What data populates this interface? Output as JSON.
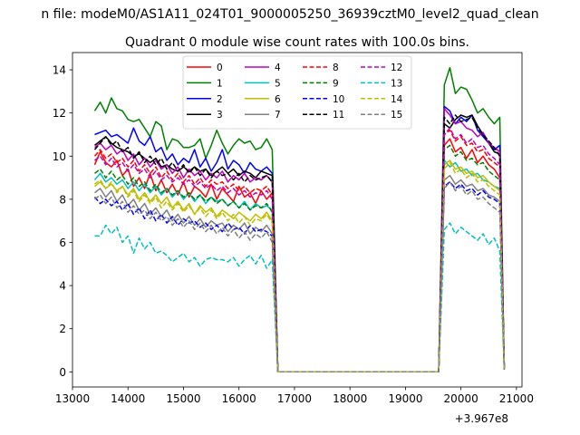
{
  "suptitle": "n file: modeM0/AS1A11_024T01_9000005250_36939cztM0_level2_quad_clean",
  "chart_data": {
    "type": "line",
    "title": "Quadrant 0 module wise count rates with 100.0s bins.",
    "xlabel": "",
    "ylabel": "",
    "x_offset_label": "+3.967e8",
    "xlim": [
      13000,
      21100
    ],
    "ylim": [
      -0.7,
      14.8
    ],
    "x_ticks": [
      13000,
      14000,
      15000,
      16000,
      17000,
      18000,
      19000,
      20000,
      21000
    ],
    "y_ticks": [
      0,
      2,
      4,
      6,
      8,
      10,
      12,
      14
    ],
    "grid": false,
    "legend_placement": "upper center",
    "legend_columns": 4,
    "x": [
      13400,
      13500,
      13600,
      13700,
      13800,
      13900,
      14000,
      14100,
      14200,
      14300,
      14400,
      14500,
      14600,
      14700,
      14800,
      14900,
      15000,
      15100,
      15200,
      15300,
      15400,
      15500,
      15600,
      15700,
      15800,
      15900,
      16000,
      16100,
      16200,
      16300,
      16400,
      16500,
      16600,
      16700,
      16800,
      19600,
      19700,
      19800,
      19900,
      20000,
      20100,
      20200,
      20300,
      20400,
      20500,
      20600,
      20700,
      20780
    ],
    "series": [
      {
        "name": "0",
        "color": "#ff0000",
        "dash": "solid",
        "values": [
          9.6,
          10.2,
          9.7,
          9.5,
          9.8,
          9.1,
          9.4,
          8.6,
          9.0,
          8.5,
          9.2,
          8.4,
          8.9,
          8.3,
          8.7,
          8.2,
          8.8,
          8.1,
          8.6,
          8.4,
          8.1,
          8.7,
          8.0,
          8.5,
          8.2,
          7.9,
          8.6,
          8.1,
          8.3,
          7.8,
          8.4,
          8.0,
          8.3,
          0.0,
          0.0,
          0.0,
          10.5,
          10.8,
          10.2,
          10.4,
          9.9,
          10.3,
          9.7,
          10.0,
          9.6,
          9.4,
          9.0,
          0.1
        ]
      },
      {
        "name": "1",
        "color": "#008000",
        "dash": "solid",
        "values": [
          12.1,
          12.5,
          12.0,
          12.7,
          12.2,
          12.1,
          11.7,
          11.6,
          11.7,
          11.3,
          10.9,
          11.6,
          11.4,
          10.3,
          10.8,
          10.7,
          10.4,
          10.4,
          10.5,
          10.8,
          9.9,
          10.5,
          11.2,
          10.6,
          10.1,
          10.5,
          10.8,
          10.6,
          10.7,
          10.3,
          10.4,
          10.8,
          10.3,
          0.0,
          0.0,
          0.0,
          13.3,
          14.1,
          12.9,
          13.2,
          13.1,
          12.6,
          12.0,
          12.2,
          11.8,
          11.5,
          11.8,
          0.2
        ]
      },
      {
        "name": "2",
        "color": "#0000ff",
        "dash": "solid",
        "values": [
          11.0,
          11.1,
          11.2,
          10.9,
          11.0,
          10.8,
          10.6,
          11.3,
          10.7,
          10.5,
          10.9,
          10.2,
          10.4,
          9.8,
          10.1,
          9.6,
          9.9,
          9.7,
          10.3,
          9.5,
          9.9,
          9.3,
          9.7,
          10.3,
          9.4,
          9.8,
          9.6,
          9.2,
          9.7,
          9.4,
          9.3,
          9.5,
          9.2,
          0.0,
          0.0,
          0.0,
          12.3,
          12.1,
          11.5,
          11.8,
          11.6,
          11.9,
          11.2,
          10.9,
          10.6,
          10.3,
          10.5,
          0.2
        ]
      },
      {
        "name": "3",
        "color": "#000000",
        "dash": "solid",
        "values": [
          10.5,
          10.7,
          10.9,
          10.6,
          10.4,
          10.3,
          10.2,
          10.0,
          10.1,
          9.9,
          9.7,
          9.9,
          9.5,
          9.6,
          9.4,
          9.3,
          9.5,
          9.3,
          9.5,
          9.3,
          9.4,
          9.1,
          9.3,
          9.5,
          9.2,
          9.4,
          9.1,
          9.3,
          9.2,
          9.0,
          9.3,
          9.2,
          9.1,
          0.0,
          0.0,
          0.0,
          11.5,
          11.3,
          11.7,
          11.9,
          11.8,
          11.9,
          11.4,
          11.0,
          10.6,
          10.2,
          10.1,
          0.2
        ]
      },
      {
        "name": "4",
        "color": "#bf00bf",
        "dash": "solid",
        "values": [
          10.4,
          10.6,
          10.3,
          10.5,
          10.1,
          10.3,
          9.8,
          10.1,
          9.6,
          9.9,
          9.5,
          9.8,
          9.4,
          9.6,
          9.2,
          9.5,
          9.0,
          9.4,
          9.1,
          9.3,
          8.9,
          9.2,
          9.0,
          9.3,
          8.8,
          9.1,
          8.9,
          9.2,
          8.8,
          9.0,
          8.9,
          9.1,
          8.8,
          0.0,
          0.0,
          0.0,
          12.2,
          11.9,
          11.5,
          11.6,
          11.3,
          11.2,
          10.9,
          11.1,
          10.6,
          10.4,
          10.2,
          0.2
        ]
      },
      {
        "name": "5",
        "color": "#00bfbf",
        "dash": "solid",
        "values": [
          8.9,
          9.2,
          8.8,
          9.0,
          8.7,
          8.9,
          8.5,
          8.8,
          8.4,
          8.7,
          8.3,
          8.6,
          8.2,
          8.5,
          8.1,
          8.4,
          8.0,
          8.3,
          7.9,
          8.2,
          7.8,
          8.1,
          7.9,
          8.0,
          7.7,
          7.9,
          7.6,
          7.9,
          7.5,
          7.8,
          7.6,
          7.7,
          7.5,
          0.0,
          0.0,
          0.0,
          9.8,
          9.5,
          9.7,
          9.3,
          9.4,
          9.1,
          9.2,
          8.9,
          8.8,
          8.6,
          8.5,
          0.2
        ]
      },
      {
        "name": "6",
        "color": "#bfbf00",
        "dash": "solid",
        "values": [
          8.6,
          8.8,
          8.5,
          8.7,
          8.4,
          8.6,
          8.2,
          8.5,
          8.0,
          8.3,
          7.9,
          8.2,
          7.8,
          8.1,
          7.6,
          7.9,
          7.5,
          7.8,
          7.3,
          7.7,
          7.4,
          7.6,
          7.2,
          7.5,
          7.3,
          7.1,
          7.4,
          7.2,
          7.0,
          7.3,
          7.1,
          7.4,
          7.0,
          0.0,
          0.0,
          0.0,
          9.6,
          9.8,
          9.4,
          9.5,
          9.2,
          9.3,
          9.0,
          9.1,
          8.8,
          8.6,
          8.4,
          0.2
        ]
      },
      {
        "name": "7",
        "color": "#808080",
        "dash": "solid",
        "values": [
          8.3,
          8.5,
          8.1,
          8.4,
          7.9,
          8.2,
          7.7,
          8.0,
          7.5,
          7.8,
          7.3,
          7.6,
          7.2,
          7.5,
          7.0,
          7.3,
          6.9,
          7.2,
          6.8,
          7.1,
          6.7,
          7.0,
          6.8,
          6.9,
          6.5,
          6.8,
          6.6,
          6.9,
          6.4,
          6.7,
          6.5,
          6.8,
          6.4,
          0.0,
          0.0,
          0.0,
          8.9,
          9.1,
          8.7,
          8.9,
          8.6,
          8.7,
          8.4,
          8.5,
          8.2,
          8.1,
          7.9,
          0.2
        ]
      },
      {
        "name": "8",
        "color": "#ff0000",
        "dash": "dashed",
        "values": [
          10.0,
          10.3,
          9.9,
          10.1,
          9.7,
          9.9,
          9.5,
          9.8,
          9.3,
          9.6,
          9.2,
          9.5,
          9.0,
          9.3,
          8.9,
          9.2,
          8.8,
          9.1,
          8.7,
          9.0,
          8.6,
          8.9,
          8.7,
          8.8,
          8.5,
          8.7,
          8.4,
          8.6,
          8.3,
          8.5,
          8.4,
          8.6,
          8.2,
          0.0,
          0.0,
          0.0,
          11.0,
          11.2,
          10.7,
          10.9,
          10.5,
          10.6,
          10.2,
          10.3,
          9.9,
          9.7,
          9.5,
          0.2
        ]
      },
      {
        "name": "9",
        "color": "#008000",
        "dash": "dashed",
        "values": [
          9.2,
          9.4,
          9.0,
          9.3,
          8.9,
          9.1,
          8.7,
          9.0,
          8.6,
          8.8,
          8.4,
          8.7,
          8.3,
          8.5,
          8.2,
          8.4,
          8.1,
          8.3,
          8.0,
          8.2,
          7.9,
          8.1,
          7.8,
          8.0,
          7.7,
          7.9,
          7.6,
          7.8,
          7.5,
          7.7,
          7.6,
          7.8,
          7.4,
          0.0,
          0.0,
          0.0,
          10.3,
          10.5,
          10.0,
          10.2,
          9.8,
          9.9,
          9.6,
          9.7,
          9.3,
          9.1,
          8.9,
          0.2
        ]
      },
      {
        "name": "10",
        "color": "#0000ff",
        "dash": "dashed",
        "values": [
          8.1,
          7.8,
          8.0,
          7.7,
          7.9,
          7.5,
          7.8,
          7.3,
          7.6,
          7.1,
          7.5,
          7.0,
          7.3,
          6.9,
          7.2,
          6.8,
          7.1,
          6.9,
          7.0,
          6.7,
          6.9,
          6.6,
          6.8,
          6.5,
          6.9,
          6.6,
          6.7,
          6.4,
          6.8,
          6.5,
          6.6,
          6.5,
          6.3,
          0.0,
          0.0,
          0.0,
          8.6,
          8.8,
          8.5,
          8.7,
          8.4,
          8.5,
          8.2,
          8.4,
          8.1,
          8.0,
          7.8,
          0.2
        ]
      },
      {
        "name": "11",
        "color": "#000000",
        "dash": "dashed",
        "values": [
          10.3,
          10.6,
          10.9,
          10.5,
          10.7,
          10.2,
          10.4,
          9.9,
          10.2,
          9.7,
          10.0,
          9.6,
          9.9,
          9.4,
          9.7,
          9.3,
          9.6,
          9.2,
          9.5,
          9.1,
          9.4,
          9.0,
          9.3,
          9.1,
          9.2,
          8.9,
          9.2,
          8.8,
          9.1,
          8.9,
          9.0,
          9.1,
          8.8,
          0.0,
          0.0,
          0.0,
          11.8,
          11.5,
          11.9,
          11.6,
          11.7,
          11.8,
          11.3,
          11.0,
          10.7,
          10.4,
          10.0,
          0.2
        ]
      },
      {
        "name": "12",
        "color": "#bf00bf",
        "dash": "dashed",
        "values": [
          9.8,
          10.0,
          9.6,
          9.9,
          9.5,
          9.7,
          9.3,
          9.6,
          9.2,
          9.4,
          9.0,
          9.3,
          8.9,
          9.1,
          8.8,
          9.0,
          8.7,
          8.9,
          8.6,
          8.8,
          8.5,
          8.7,
          8.4,
          8.6,
          8.3,
          8.5,
          8.2,
          8.4,
          8.1,
          8.3,
          8.2,
          8.4,
          8.0,
          0.0,
          0.0,
          0.0,
          11.0,
          11.3,
          10.8,
          11.0,
          10.6,
          10.8,
          10.4,
          10.5,
          10.1,
          9.9,
          9.6,
          0.2
        ]
      },
      {
        "name": "13",
        "color": "#00bfbf",
        "dash": "dashed",
        "values": [
          6.3,
          6.3,
          6.8,
          6.4,
          6.7,
          6.0,
          6.3,
          5.5,
          6.2,
          5.7,
          6.0,
          5.5,
          5.6,
          5.4,
          5.1,
          5.3,
          5.5,
          5.1,
          5.3,
          4.9,
          5.2,
          5.3,
          5.2,
          5.2,
          5.1,
          5.3,
          4.9,
          5.2,
          5.4,
          5.0,
          5.4,
          4.8,
          5.2,
          0.0,
          0.0,
          0.0,
          6.6,
          6.9,
          6.4,
          6.7,
          6.5,
          6.3,
          6.1,
          6.4,
          5.9,
          6.2,
          5.6,
          0.1
        ]
      },
      {
        "name": "14",
        "color": "#bfbf00",
        "dash": "dashed",
        "values": [
          8.7,
          8.9,
          8.5,
          8.8,
          8.3,
          8.6,
          8.1,
          8.4,
          7.9,
          8.2,
          7.8,
          8.1,
          7.6,
          7.9,
          7.5,
          7.8,
          7.4,
          7.7,
          7.3,
          7.6,
          7.2,
          7.5,
          7.1,
          7.4,
          7.0,
          7.3,
          6.9,
          7.2,
          6.8,
          7.1,
          7.0,
          7.3,
          6.9,
          0.0,
          0.0,
          0.0,
          9.4,
          9.7,
          9.2,
          9.4,
          9.0,
          9.2,
          8.8,
          8.9,
          8.6,
          8.4,
          8.2,
          0.2
        ]
      },
      {
        "name": "15",
        "color": "#808080",
        "dash": "dashed",
        "values": [
          8.0,
          8.2,
          7.8,
          8.1,
          7.6,
          7.9,
          7.4,
          7.7,
          7.3,
          7.5,
          7.1,
          7.4,
          7.0,
          7.2,
          6.8,
          7.1,
          6.7,
          7.0,
          6.6,
          6.9,
          6.5,
          6.8,
          6.4,
          6.7,
          6.3,
          6.6,
          6.2,
          6.5,
          6.1,
          6.4,
          6.2,
          6.5,
          6.0,
          0.0,
          0.0,
          0.0,
          8.5,
          8.8,
          8.4,
          8.6,
          8.2,
          8.4,
          8.0,
          8.1,
          7.8,
          7.6,
          7.4,
          0.1
        ]
      }
    ]
  }
}
